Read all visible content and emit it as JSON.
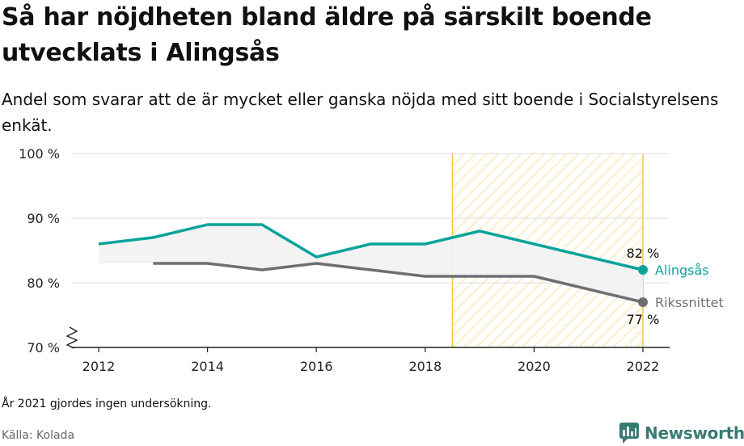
{
  "title": "Så har nöjdheten bland äldre på särskilt boende utvecklats i Alingsås",
  "subtitle": "Andel som svarar att de är mycket eller ganska nöjda med sitt boende i Socialstyrelsens enkät.",
  "note": "År 2021 gjordes ingen undersökning.",
  "source": "Källa: Kolada",
  "brand": "Newsworthy",
  "colors": {
    "alingsas": "#0aa39a",
    "riket": "#6f6e73",
    "highlight": "#f5c542",
    "grid": "#dedede",
    "fill": "#f2f2f2"
  },
  "chart_data": {
    "type": "line",
    "ylim": [
      70,
      100
    ],
    "xlim": [
      2012,
      2022
    ],
    "yticks": [
      70,
      80,
      90,
      100
    ],
    "ytick_labels": [
      "70 %",
      "80 %",
      "90 %",
      "100 %"
    ],
    "xticks": [
      2012,
      2014,
      2016,
      2018,
      2020,
      2022
    ],
    "xtick_labels": [
      "2012",
      "2014",
      "2016",
      "2018",
      "2020",
      "2022"
    ],
    "highlight_range": [
      2018.5,
      2022
    ],
    "grid": true,
    "axis_break": true,
    "series": [
      {
        "name": "Alingsås",
        "x": [
          2012,
          2013,
          2014,
          2015,
          2016,
          2017,
          2018,
          2019,
          2020,
          2022
        ],
        "y": [
          86,
          87,
          89,
          89,
          84,
          86,
          86,
          88,
          86,
          82
        ],
        "end_label": "82 %"
      },
      {
        "name": "Rikssnittet",
        "x": [
          2013,
          2014,
          2015,
          2016,
          2017,
          2018,
          2019,
          2020,
          2022
        ],
        "y": [
          83,
          83,
          82,
          83,
          82,
          81,
          81,
          81,
          77
        ],
        "end_label": "77 %"
      }
    ]
  }
}
